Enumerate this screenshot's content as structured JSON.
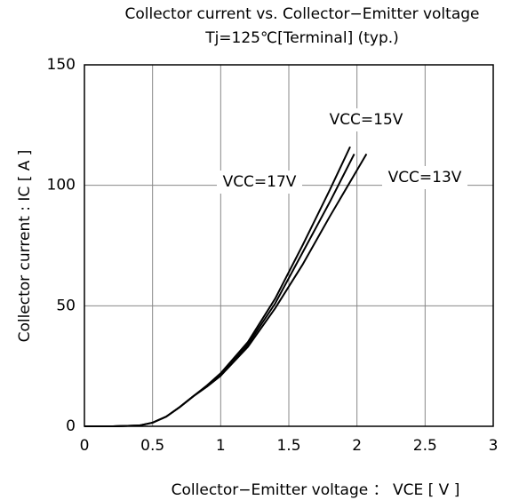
{
  "chart_data": {
    "type": "line",
    "title": "Collector current vs. Collector−Emitter voltage",
    "subtitle": "Tj=125℃[Terminal] (typ.)",
    "x_label": "Collector−Emitter voltage ： VCE [ V ]",
    "y_label": "Collector current : IC [ A ]",
    "xlim": [
      0,
      3
    ],
    "xticks": [
      0,
      0.5,
      1,
      1.5,
      2,
      2.5,
      3
    ],
    "ylim": [
      0,
      150
    ],
    "yticks": [
      0,
      50,
      100,
      150
    ],
    "grid": true,
    "series": [
      {
        "name": "VCC=17V",
        "color": "#000000",
        "x": [
          0,
          0.2,
          0.4,
          0.5,
          0.6,
          0.7,
          0.8,
          0.9,
          1.0,
          1.2,
          1.4,
          1.6,
          1.8,
          1.95
        ],
        "values": [
          0,
          0,
          0.3,
          1.5,
          4,
          8,
          12.5,
          17,
          22,
          35,
          53,
          75,
          98,
          116
        ]
      },
      {
        "name": "VCC=15V",
        "color": "#000000",
        "x": [
          0,
          0.2,
          0.4,
          0.5,
          0.6,
          0.7,
          0.8,
          0.9,
          1.0,
          1.2,
          1.4,
          1.6,
          1.8,
          1.98
        ],
        "values": [
          0,
          0,
          0.3,
          1.5,
          4,
          8,
          12.5,
          16.5,
          21,
          34,
          51,
          72,
          93,
          113
        ]
      },
      {
        "name": "VCC=13V",
        "color": "#000000",
        "x": [
          0,
          0.2,
          0.4,
          0.5,
          0.6,
          0.7,
          0.8,
          0.9,
          1.0,
          1.2,
          1.4,
          1.6,
          1.8,
          2.07
        ],
        "values": [
          0,
          0,
          0.3,
          1.5,
          4,
          8,
          12.5,
          16.5,
          21,
          33,
          49,
          67,
          87,
          113
        ]
      }
    ]
  }
}
